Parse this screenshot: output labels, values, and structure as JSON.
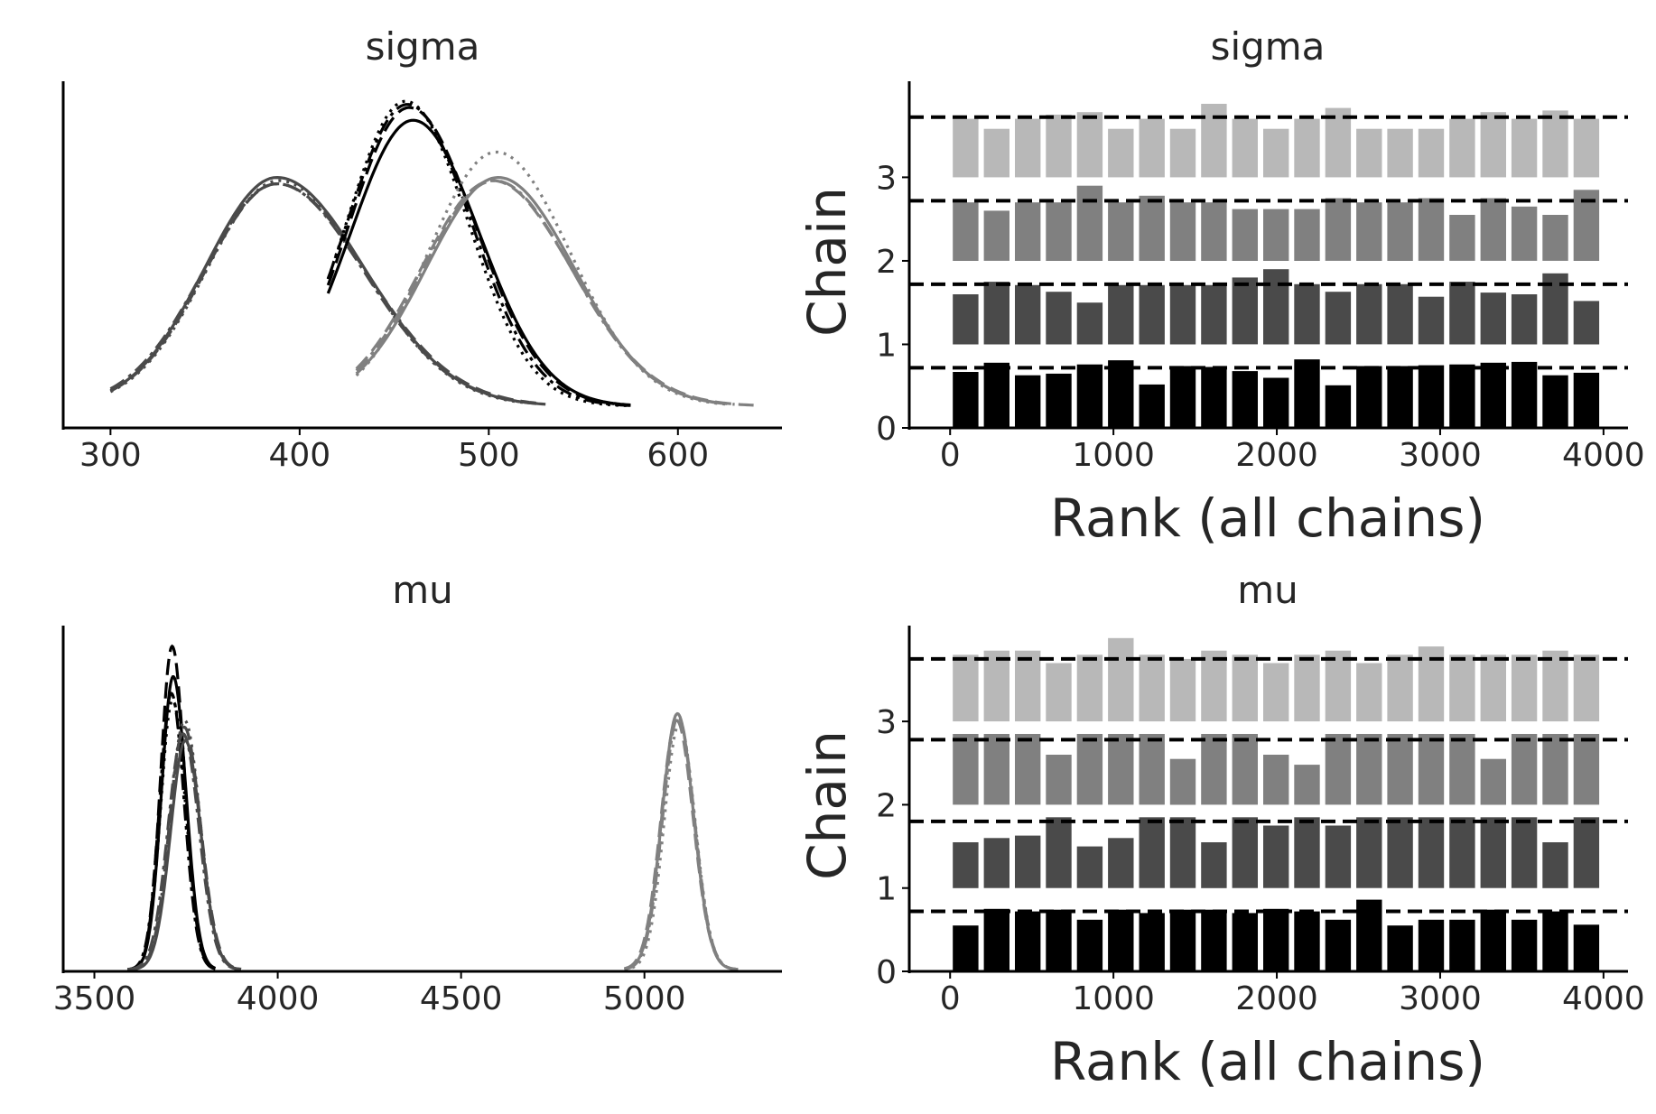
{
  "chart_data": [
    {
      "type": "line",
      "title": "sigma",
      "xlabel": "",
      "ylabel": "",
      "xlim": [
        275,
        655
      ],
      "xticks": [
        "300",
        "400",
        "500",
        "600"
      ],
      "grid": false,
      "series": [
        {
          "color": "#4a4a4a",
          "mode": 388,
          "sd_left": 38,
          "sd_right": 46,
          "x_range": [
            300,
            530
          ],
          "height": 0.72,
          "style": "solid"
        },
        {
          "color": "#4a4a4a",
          "mode": 388,
          "sd_left": 38,
          "sd_right": 47,
          "x_range": [
            300,
            525
          ],
          "height": 0.7,
          "style": "dashed"
        },
        {
          "color": "#4a4a4a",
          "mode": 388,
          "sd_left": 39,
          "sd_right": 46,
          "x_range": [
            300,
            525
          ],
          "height": 0.7,
          "style": "dashdot"
        },
        {
          "color": "#4a4a4a",
          "mode": 389,
          "sd_left": 38,
          "sd_right": 45,
          "x_range": [
            300,
            520
          ],
          "height": 0.71,
          "style": "dotted"
        },
        {
          "color": "#000000",
          "mode": 460,
          "sd_left": 33,
          "sd_right": 35,
          "x_range": [
            415,
            575
          ],
          "height": 0.9,
          "style": "solid"
        },
        {
          "color": "#000000",
          "mode": 458,
          "sd_left": 32,
          "sd_right": 35,
          "x_range": [
            415,
            575
          ],
          "height": 0.94,
          "style": "dashed"
        },
        {
          "color": "#000000",
          "mode": 457,
          "sd_left": 32,
          "sd_right": 34,
          "x_range": [
            415,
            575
          ],
          "height": 0.95,
          "style": "dashdot"
        },
        {
          "color": "#000000",
          "mode": 456,
          "sd_left": 31,
          "sd_right": 33,
          "x_range": [
            415,
            575
          ],
          "height": 0.96,
          "style": "dotted"
        },
        {
          "color": "#808080",
          "mode": 505,
          "sd_left": 38,
          "sd_right": 40,
          "x_range": [
            430,
            625
          ],
          "height": 0.72,
          "style": "solid"
        },
        {
          "color": "#808080",
          "mode": 502,
          "sd_left": 38,
          "sd_right": 42,
          "x_range": [
            430,
            640
          ],
          "height": 0.71,
          "style": "dashed"
        },
        {
          "color": "#808080",
          "mode": 503,
          "sd_left": 38,
          "sd_right": 41,
          "x_range": [
            430,
            630
          ],
          "height": 0.71,
          "style": "dashdot"
        },
        {
          "color": "#808080",
          "mode": 504,
          "sd_left": 36,
          "sd_right": 39,
          "x_range": [
            430,
            625
          ],
          "height": 0.8,
          "style": "dotted"
        }
      ]
    },
    {
      "type": "bar",
      "title": "sigma",
      "xlabel": "Rank (all chains)",
      "ylabel": "Chain",
      "xlim": [
        -250,
        4150
      ],
      "ylim": [
        0,
        4.15
      ],
      "xticks": [
        "0",
        "1000",
        "2000",
        "3000",
        "4000"
      ],
      "yticks": [
        "0",
        "1",
        "2",
        "3"
      ],
      "grid": false,
      "bin_width": 190,
      "bin_starts": [
        0,
        190,
        380,
        570,
        760,
        950,
        1140,
        1330,
        1520,
        1710,
        1900,
        2090,
        2280,
        2470,
        2660,
        2850,
        3040,
        3230,
        3420,
        3610,
        3800
      ],
      "chains": [
        {
          "name": "0",
          "color": "#000000",
          "values": [
            0.67,
            0.78,
            0.63,
            0.65,
            0.76,
            0.81,
            0.52,
            0.74,
            0.73,
            0.68,
            0.6,
            0.82,
            0.51,
            0.74,
            0.74,
            0.75,
            0.76,
            0.78,
            0.79,
            0.63,
            0.66
          ],
          "uniform": 0.72
        },
        {
          "name": "1",
          "color": "#4a4a4a",
          "values": [
            0.6,
            0.75,
            0.71,
            0.63,
            0.5,
            0.71,
            0.71,
            0.71,
            0.71,
            0.8,
            0.9,
            0.72,
            0.63,
            0.72,
            0.72,
            0.57,
            0.75,
            0.62,
            0.6,
            0.85,
            0.52
          ],
          "uniform": 0.72
        },
        {
          "name": "2",
          "color": "#808080",
          "values": [
            0.7,
            0.6,
            0.7,
            0.7,
            0.9,
            0.7,
            0.78,
            0.7,
            0.7,
            0.62,
            0.62,
            0.62,
            0.75,
            0.7,
            0.7,
            0.75,
            0.55,
            0.75,
            0.65,
            0.55,
            0.85
          ],
          "uniform": 0.72
        },
        {
          "name": "3",
          "color": "#b8b8b8",
          "values": [
            0.7,
            0.58,
            0.7,
            0.75,
            0.78,
            0.58,
            0.7,
            0.58,
            0.88,
            0.7,
            0.58,
            0.7,
            0.83,
            0.58,
            0.58,
            0.58,
            0.7,
            0.78,
            0.7,
            0.8,
            0.7
          ],
          "uniform": 0.72
        }
      ]
    },
    {
      "type": "line",
      "title": "mu",
      "xlabel": "",
      "ylabel": "",
      "xlim": [
        3415,
        5375
      ],
      "xticks": [
        "3500",
        "4000",
        "4500",
        "5000"
      ],
      "grid": false,
      "series": [
        {
          "color": "#000000",
          "mode": 3715,
          "sd_left": 32,
          "sd_right": 35,
          "x_range": [
            3590,
            3830
          ],
          "height": 0.87,
          "style": "solid"
        },
        {
          "color": "#000000",
          "mode": 3712,
          "sd_left": 31,
          "sd_right": 34,
          "x_range": [
            3590,
            3830
          ],
          "height": 0.96,
          "style": "dashed"
        },
        {
          "color": "#000000",
          "mode": 3710,
          "sd_left": 32,
          "sd_right": 35,
          "x_range": [
            3590,
            3830
          ],
          "height": 0.82,
          "style": "dashdot"
        },
        {
          "color": "#000000",
          "mode": 3713,
          "sd_left": 32,
          "sd_right": 36,
          "x_range": [
            3590,
            3830
          ],
          "height": 0.8,
          "style": "dotted"
        },
        {
          "color": "#4a4a4a",
          "mode": 3748,
          "sd_left": 40,
          "sd_right": 42,
          "x_range": [
            3590,
            3900
          ],
          "height": 0.68,
          "style": "solid"
        },
        {
          "color": "#4a4a4a",
          "mode": 3745,
          "sd_left": 40,
          "sd_right": 44,
          "x_range": [
            3590,
            3900
          ],
          "height": 0.72,
          "style": "dashed"
        },
        {
          "color": "#4a4a4a",
          "mode": 3742,
          "sd_left": 41,
          "sd_right": 43,
          "x_range": [
            3590,
            3900
          ],
          "height": 0.7,
          "style": "dashdot"
        },
        {
          "color": "#4a4a4a",
          "mode": 3746,
          "sd_left": 40,
          "sd_right": 42,
          "x_range": [
            3590,
            3900
          ],
          "height": 0.74,
          "style": "dotted"
        },
        {
          "color": "#808080",
          "mode": 5090,
          "sd_left": 42,
          "sd_right": 44,
          "x_range": [
            4945,
            5255
          ],
          "height": 0.76,
          "style": "solid"
        },
        {
          "color": "#808080",
          "mode": 5088,
          "sd_left": 43,
          "sd_right": 45,
          "x_range": [
            4945,
            5255
          ],
          "height": 0.74,
          "style": "dashed"
        },
        {
          "color": "#808080",
          "mode": 5092,
          "sd_left": 42,
          "sd_right": 44,
          "x_range": [
            4945,
            5255
          ],
          "height": 0.75,
          "style": "dashdot"
        },
        {
          "color": "#808080",
          "mode": 5095,
          "sd_left": 41,
          "sd_right": 43,
          "x_range": [
            4945,
            5255
          ],
          "height": 0.73,
          "style": "dotted"
        }
      ]
    },
    {
      "type": "bar",
      "title": "mu",
      "xlabel": "Rank (all chains)",
      "ylabel": "Chain",
      "xlim": [
        -250,
        4150
      ],
      "ylim": [
        0,
        4.15
      ],
      "xticks": [
        "0",
        "1000",
        "2000",
        "3000",
        "4000"
      ],
      "yticks": [
        "0",
        "1",
        "2",
        "3"
      ],
      "grid": false,
      "bin_width": 190,
      "bin_starts": [
        0,
        190,
        380,
        570,
        760,
        950,
        1140,
        1330,
        1520,
        1710,
        1900,
        2090,
        2280,
        2470,
        2660,
        2850,
        3040,
        3230,
        3420,
        3610,
        3800
      ],
      "chains": [
        {
          "name": "0",
          "color": "#000000",
          "values": [
            0.55,
            0.75,
            0.72,
            0.74,
            0.62,
            0.74,
            0.7,
            0.74,
            0.74,
            0.7,
            0.75,
            0.72,
            0.62,
            0.86,
            0.55,
            0.62,
            0.62,
            0.74,
            0.62,
            0.72,
            0.56
          ],
          "uniform": 0.72
        },
        {
          "name": "1",
          "color": "#4a4a4a",
          "values": [
            0.55,
            0.6,
            0.63,
            0.85,
            0.5,
            0.6,
            0.85,
            0.85,
            0.55,
            0.85,
            0.75,
            0.85,
            0.75,
            0.85,
            0.85,
            0.85,
            0.85,
            0.85,
            0.85,
            0.55,
            0.85
          ],
          "uniform": 0.8
        },
        {
          "name": "2",
          "color": "#808080",
          "values": [
            0.85,
            0.85,
            0.85,
            0.6,
            0.85,
            0.85,
            0.85,
            0.55,
            0.85,
            0.85,
            0.6,
            0.48,
            0.85,
            0.85,
            0.85,
            0.85,
            0.85,
            0.55,
            0.85,
            0.85,
            0.85
          ],
          "uniform": 0.78
        },
        {
          "name": "3",
          "color": "#b8b8b8",
          "values": [
            0.8,
            0.85,
            0.85,
            0.7,
            0.8,
            1.0,
            0.8,
            0.75,
            0.85,
            0.8,
            0.7,
            0.8,
            0.85,
            0.7,
            0.8,
            0.9,
            0.8,
            0.8,
            0.8,
            0.85,
            0.8
          ],
          "uniform": 0.75
        }
      ]
    }
  ]
}
